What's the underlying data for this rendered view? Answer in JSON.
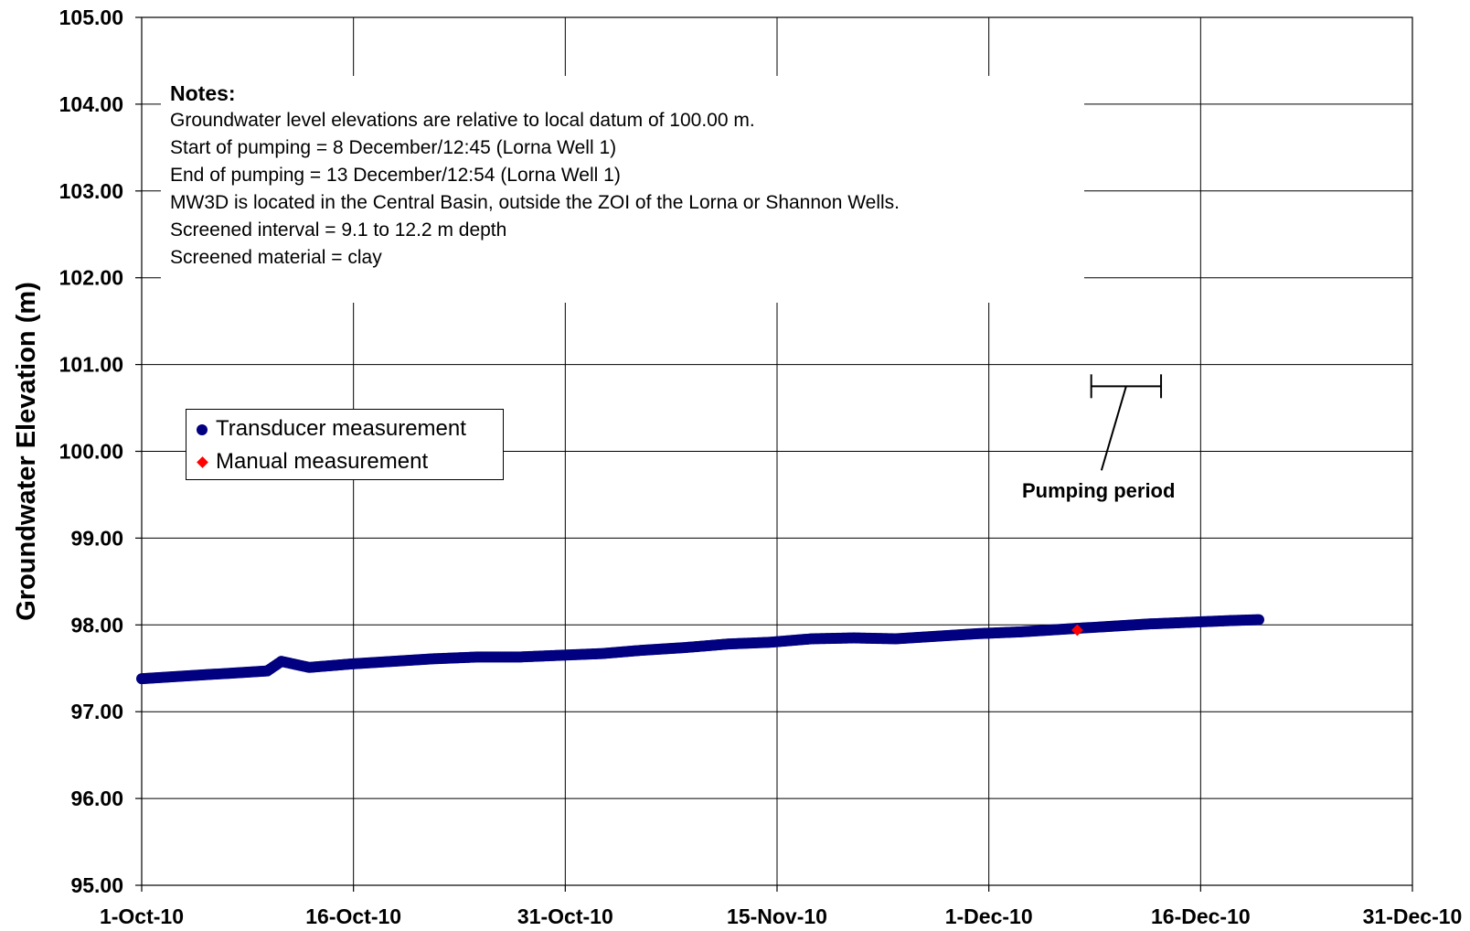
{
  "chart_data": {
    "type": "scatter",
    "title": "",
    "xlabel": "",
    "ylabel": "Groundwater Elevation (m)",
    "x_type": "date",
    "xlim": [
      "2010-10-01",
      "2010-12-31"
    ],
    "x_tick_labels": [
      "1-Oct-10",
      "16-Oct-10",
      "31-Oct-10",
      "15-Nov-10",
      "1-Dec-10",
      "16-Dec-10",
      "31-Dec-10"
    ],
    "ylim": [
      95.0,
      105.0
    ],
    "y_tick_labels": [
      "95.00",
      "96.00",
      "97.00",
      "98.00",
      "99.00",
      "100.00",
      "101.00",
      "102.00",
      "103.00",
      "104.00",
      "105.00"
    ],
    "grid": true,
    "legend_position": "middle-left",
    "series": [
      {
        "name": "Transducer measurement",
        "marker": "circle",
        "color": "#000080",
        "points": [
          [
            "2010-10-01",
            97.38
          ],
          [
            "2010-10-04",
            97.41
          ],
          [
            "2010-10-07",
            97.44
          ],
          [
            "2010-10-10",
            97.47
          ],
          [
            "2010-10-11",
            97.58
          ],
          [
            "2010-10-13",
            97.51
          ],
          [
            "2010-10-16",
            97.55
          ],
          [
            "2010-10-19",
            97.58
          ],
          [
            "2010-10-22",
            97.61
          ],
          [
            "2010-10-25",
            97.63
          ],
          [
            "2010-10-28",
            97.63
          ],
          [
            "2010-10-31",
            97.65
          ],
          [
            "2010-11-03",
            97.67
          ],
          [
            "2010-11-06",
            97.71
          ],
          [
            "2010-11-09",
            97.74
          ],
          [
            "2010-11-12",
            97.78
          ],
          [
            "2010-11-15",
            97.8
          ],
          [
            "2010-11-18",
            97.84
          ],
          [
            "2010-11-21",
            97.85
          ],
          [
            "2010-11-24",
            97.84
          ],
          [
            "2010-11-27",
            97.87
          ],
          [
            "2010-11-30",
            97.9
          ],
          [
            "2010-12-03",
            97.92
          ],
          [
            "2010-12-06",
            97.95
          ],
          [
            "2010-12-09",
            97.98
          ],
          [
            "2010-12-12",
            98.01
          ],
          [
            "2010-12-15",
            98.03
          ],
          [
            "2010-12-18",
            98.05
          ],
          [
            "2010-12-20",
            98.06
          ]
        ]
      },
      {
        "name": "Manual measurement",
        "marker": "diamond",
        "color": "#ff0000",
        "points": [
          [
            "2010-12-07",
            97.94
          ]
        ]
      }
    ],
    "notes": {
      "title": "Notes:",
      "lines": [
        "Groundwater level elevations are relative to local datum of 100.00 m.",
        "Start of pumping = 8 December/12:45 (Lorna Well 1)",
        "End of pumping = 13 December/12:54 (Lorna Well 1)",
        "MW3D is located in the Central Basin, outside the ZOI of the Lorna or Shannon Wells.",
        "Screened interval = 9.1 to 12.2 m depth",
        "Screened material = clay"
      ]
    },
    "pumping_period": {
      "label": "Pumping period",
      "start": "2010-12-08",
      "end": "2010-12-13",
      "y": 100.75
    }
  }
}
